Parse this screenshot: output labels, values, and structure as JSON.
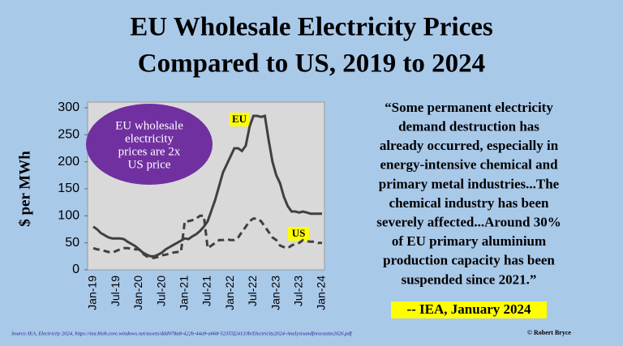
{
  "title_lines": [
    "EU Wholesale Electricity Prices",
    "Compared to US, 2019 to 2024"
  ],
  "chart_data": {
    "type": "line",
    "ylabel": "$ per MWh",
    "ylim": [
      0,
      300
    ],
    "yticks": [
      0,
      50,
      100,
      150,
      200,
      250,
      300
    ],
    "categories": [
      "Jan-19",
      null,
      null,
      null,
      null,
      null,
      "Jul-19",
      null,
      null,
      null,
      null,
      null,
      "Jan-20",
      null,
      null,
      null,
      null,
      null,
      "Jul-20",
      null,
      null,
      null,
      null,
      null,
      "Jan-21",
      null,
      null,
      null,
      null,
      null,
      "Jul-21",
      null,
      null,
      null,
      null,
      null,
      "Jan-22",
      null,
      null,
      null,
      null,
      null,
      "Jul-22",
      null,
      null,
      null,
      null,
      null,
      "Jan-23",
      null,
      null,
      null,
      null,
      null,
      "Jul-23",
      null,
      null,
      null,
      null,
      null,
      "Jan-24"
    ],
    "series": [
      {
        "name": "EU",
        "color": "#404040",
        "dashed": false,
        "values": [
          80,
          75,
          68,
          64,
          60,
          58,
          58,
          58,
          57,
          52,
          48,
          44,
          38,
          32,
          28,
          25,
          25,
          28,
          32,
          38,
          42,
          46,
          50,
          54,
          58,
          57,
          62,
          66,
          72,
          80,
          90,
          110,
          130,
          155,
          180,
          195,
          210,
          225,
          225,
          220,
          230,
          265,
          285,
          285,
          283,
          285,
          240,
          200,
          175,
          160,
          135,
          118,
          108,
          108,
          106,
          108,
          106,
          104,
          104,
          104,
          104
        ]
      },
      {
        "name": "US",
        "color": "#404040",
        "dashed": true,
        "values": [
          40,
          38,
          37,
          35,
          33,
          32,
          35,
          38,
          40,
          40,
          39,
          38,
          38,
          30,
          25,
          22,
          22,
          24,
          27,
          28,
          30,
          32,
          33,
          33,
          90,
          90,
          92,
          95,
          100,
          100,
          40,
          45,
          50,
          55,
          55,
          57,
          55,
          55,
          60,
          70,
          80,
          90,
          95,
          95,
          90,
          80,
          70,
          60,
          55,
          45,
          42,
          40,
          45,
          48,
          50,
          55,
          53,
          52,
          52,
          50,
          50
        ]
      }
    ],
    "annotation_lines": [
      "EU wholesale",
      "electricity",
      "prices are  2x",
      "US price"
    ]
  },
  "quote_lines": [
    "“Some permanent electricity",
    "demand destruction has",
    "already occurred, especially in",
    "energy-intensive chemical and",
    "primary metal industries...The",
    "chemical industry has been",
    "severely affected...Around 30%",
    "of EU primary aluminium",
    "production capacity has been",
    "suspended since 2021.”"
  ],
  "attribution": "-- IEA, January 2024",
  "source": "Source:IEA, Electricity 2024, https://iea.blob.core.windows.net/assets/ddd078a8-422b-44a9-a668-52355f24133b/Electricity2024-Analysisandforecastto2026.pdf",
  "credit": "© Robert Bryce"
}
